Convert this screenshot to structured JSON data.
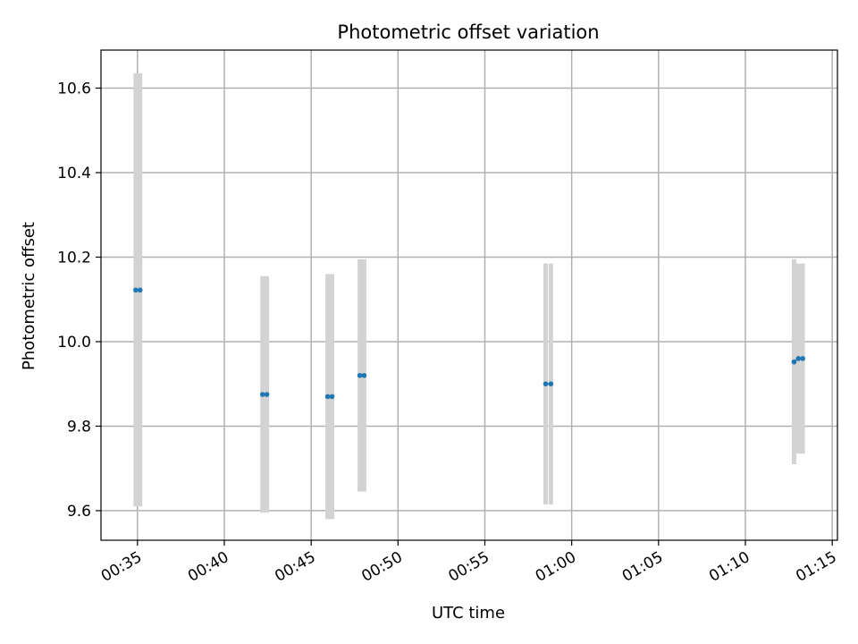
{
  "chart_data": {
    "type": "scatter",
    "title": "Photometric offset variation",
    "xlabel": "UTC time",
    "ylabel": "Photometric offset",
    "x_ticks": [
      "00:35",
      "00:40",
      "00:45",
      "00:50",
      "00:55",
      "01:00",
      "01:05",
      "01:10",
      "01:15"
    ],
    "x_tick_minutes": [
      35,
      40,
      45,
      50,
      55,
      60,
      65,
      70,
      75
    ],
    "xlim_minutes": [
      32.9,
      75.3
    ],
    "y_ticks": [
      9.6,
      9.8,
      10.0,
      10.2,
      10.4,
      10.6
    ],
    "ylim": [
      9.53,
      10.69
    ],
    "grid": true,
    "legend": "none",
    "colors": {
      "point": "#1f77b4",
      "errorbar": "#d3d3d3",
      "grid": "#b0b0b0"
    },
    "series": [
      {
        "points": [
          {
            "t": 34.9,
            "y": 10.122,
            "err_low": 9.61,
            "err_high": 10.635
          },
          {
            "t": 35.15,
            "y": 10.122,
            "err_low": 9.61,
            "err_high": 10.635
          },
          {
            "t": 42.2,
            "y": 9.875,
            "err_low": 9.595,
            "err_high": 10.155
          },
          {
            "t": 42.45,
            "y": 9.875,
            "err_low": 9.595,
            "err_high": 10.155
          },
          {
            "t": 45.95,
            "y": 9.87,
            "err_low": 9.58,
            "err_high": 10.16
          },
          {
            "t": 46.2,
            "y": 9.87,
            "err_low": 9.58,
            "err_high": 10.16
          },
          {
            "t": 47.8,
            "y": 9.92,
            "err_low": 9.645,
            "err_high": 10.195
          },
          {
            "t": 48.05,
            "y": 9.92,
            "err_low": 9.645,
            "err_high": 10.195
          },
          {
            "t": 58.5,
            "y": 9.9,
            "err_low": 9.615,
            "err_high": 10.185
          },
          {
            "t": 58.8,
            "y": 9.9,
            "err_low": 9.615,
            "err_high": 10.185
          },
          {
            "t": 72.8,
            "y": 9.952,
            "err_low": 9.71,
            "err_high": 10.195
          },
          {
            "t": 73.05,
            "y": 9.96,
            "err_low": 9.735,
            "err_high": 10.185
          },
          {
            "t": 73.3,
            "y": 9.96,
            "err_low": 9.735,
            "err_high": 10.185
          }
        ]
      }
    ]
  }
}
